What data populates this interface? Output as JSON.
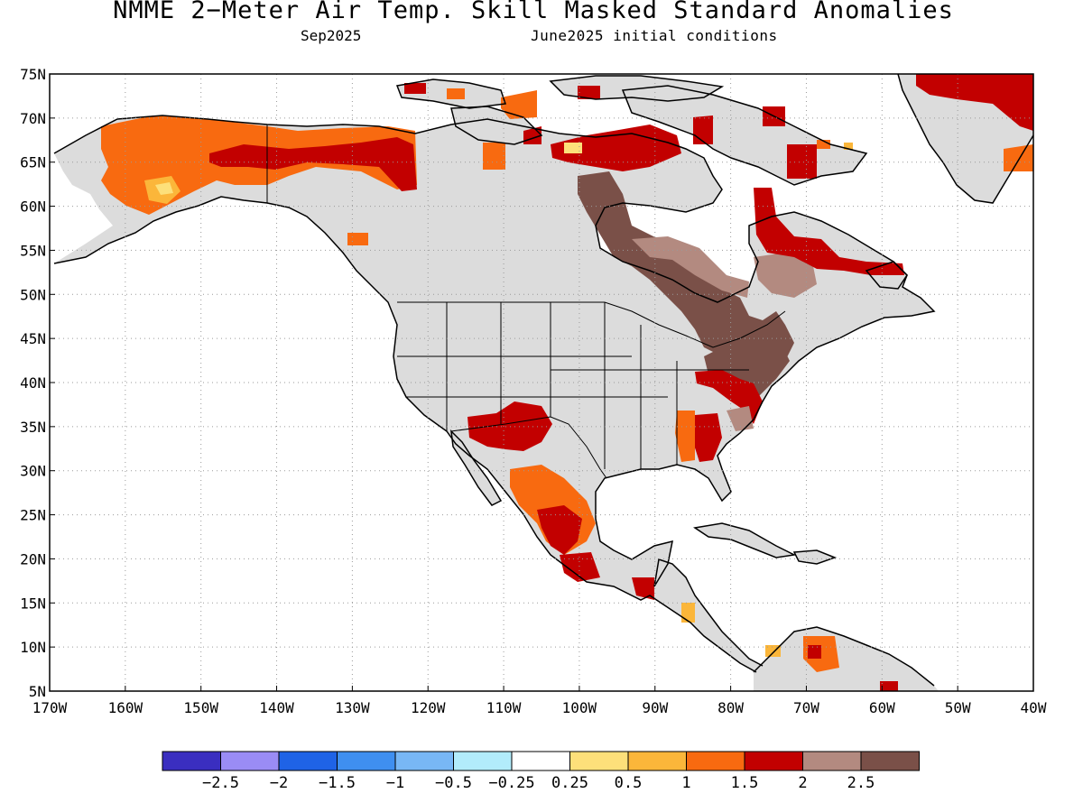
{
  "title": "NMME 2−Meter Air Temp. Skill Masked Standard Anomalies",
  "valid_month": "Sep2025",
  "initial_conditions": "June2025 initial conditions",
  "colors": {
    "land_no_skill": "#dcdcdc",
    "ocean": "#ffffff",
    "grid": "#9a9a9a",
    "coast": "#000000"
  },
  "lat_labels": [
    "75N",
    "70N",
    "65N",
    "60N",
    "55N",
    "50N",
    "45N",
    "40N",
    "35N",
    "30N",
    "25N",
    "20N",
    "15N",
    "10N",
    "5N"
  ],
  "lon_labels": [
    "170W",
    "160W",
    "150W",
    "140W",
    "130W",
    "120W",
    "110W",
    "100W",
    "90W",
    "80W",
    "70W",
    "60W",
    "50W",
    "40W"
  ],
  "colorbar": {
    "colors": [
      "#3a2ec0",
      "#9a8cf5",
      "#1f63e6",
      "#3f8ff0",
      "#78b7f5",
      "#b2ecfb",
      "#ffffff",
      "#fde07a",
      "#fbb63a",
      "#f86a10",
      "#c20000",
      "#b38a80",
      "#7a5048"
    ],
    "labels": [
      "−2.5",
      "−2",
      "−1.5",
      "−1",
      "−0.5",
      "−0.25",
      "0.25",
      "0.5",
      "1",
      "1.5",
      "2",
      "2.5"
    ]
  },
  "anomaly_regions": [
    {
      "region": "Alaska",
      "category": "1.5"
    },
    {
      "region": "Yukon / northern British Columbia",
      "category": "1.5"
    },
    {
      "region": "Interior Alaska core",
      "category": "2"
    },
    {
      "region": "Hudson Bay west shore to Great Lakes",
      "category": "2.5"
    },
    {
      "region": "Northern Quebec / Labrador",
      "category": "2"
    },
    {
      "region": "Northeast United States",
      "category": "2.5"
    },
    {
      "region": "Southwest US / Arizona / New Mexico",
      "category": "2"
    },
    {
      "region": "Northeastern Mexico",
      "category": "1.5"
    },
    {
      "region": "Southeast United States",
      "category": "2"
    },
    {
      "region": "Greenland northeast",
      "category": "2"
    },
    {
      "region": "Northern Venezuela / Colombia",
      "category": "1.5"
    }
  ]
}
